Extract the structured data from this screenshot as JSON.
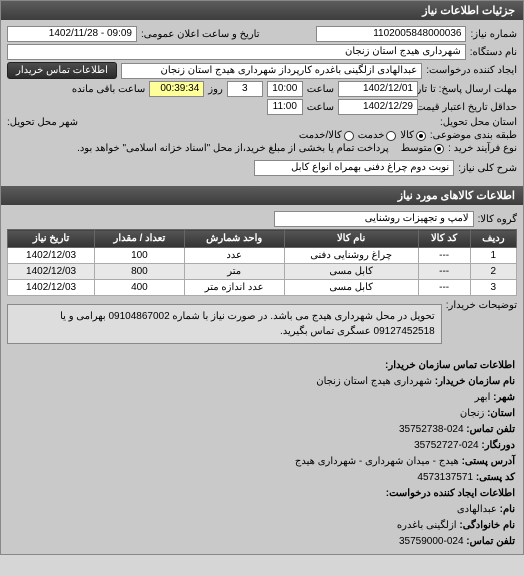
{
  "titlebar": "جزئیات اطلاعات نیاز",
  "need": {
    "number_label": "شماره نیاز:",
    "number": "1102005848000036",
    "announce_label": "تاریخ و ساعت اعلان عمومی:",
    "announce": "09:09 - 1402/11/28",
    "org_label": "نام دستگاه:",
    "org": "شهرداری هیدج استان زنجان",
    "requester_label": "ایجاد کننده درخواست:",
    "requester": "عبدالهادی ازلگینی باغدره کارپرداز شهرداری هیدج استان زنجان",
    "contact_btn": "اطلاعات تماس خریدار",
    "deadline_label": "مهلت ارسال پاسخ: تا تاریخ:",
    "deadline_date": "1402/12/01",
    "deadline_time_lbl": "ساعت",
    "deadline_time": "10:00",
    "day_lbl": "روز",
    "days_left": "3",
    "remain_lbl": "ساعت باقی مانده",
    "remain_time": "00:39:34",
    "validity_label": "حداقل تاریخ اعتبار قیمت: تا تاریخ:",
    "validity_date": "1402/12/29",
    "validity_time": "11:00",
    "province_label": "استان محل تحویل:",
    "city_label": "شهر محل تحویل:",
    "budget_label": "طبقه بندی موضوعی:",
    "r_goods": "کالا",
    "r_service": "خدمت",
    "r_both": "کالا/خدمت",
    "process_label": "نوع فرآیند خرید :",
    "r_mid": "متوسط",
    "process_note": "پرداخت تمام یا بخشی از مبلغ خرید،از محل \"اسناد خزانه اسلامی\" خواهد بود.",
    "subject_label": "شرح کلی نیاز:",
    "subject": "نوبت دوم چراغ دفنی بهمراه انواع کابل"
  },
  "items_header": "اطلاعات کالاهای مورد نیاز",
  "group_label": "گروه کالا:",
  "group": "لامپ و تجهیزات روشنایی",
  "table": {
    "cols": [
      "ردیف",
      "کد کالا",
      "نام کالا",
      "واحد شمارش",
      "تعداد / مقدار",
      "تاریخ نیاز"
    ],
    "rows": [
      [
        "1",
        "---",
        "چراغ روشنایی دفنی",
        "عدد",
        "100",
        "1402/12/03"
      ],
      [
        "2",
        "---",
        "کابل مسی",
        "متر",
        "800",
        "1402/12/03"
      ],
      [
        "3",
        "---",
        "کابل مسی",
        "عدد اندازه متر",
        "400",
        "1402/12/03"
      ]
    ]
  },
  "buyer_desc_label": "توضیحات خریدار:",
  "buyer_desc": "تحویل در محل شهرداری هیدج می باشد. در صورت نیاز با شماره 09104867002 بهرامی و یا 09127452518 عسگری تماس بگیرید.",
  "contact": {
    "header": "اطلاعات تماس سازمان خریدار:",
    "org_lbl": "نام سازمان خریدار:",
    "org": "شهرداری هیدج استان زنجان",
    "city_lbl": "شهر:",
    "city": "ابهر",
    "prov_lbl": "استان:",
    "prov": "زنجان",
    "tel_lbl": "تلفن تماس:",
    "tel": "024-35752738",
    "fax_lbl": "دورنگار:",
    "fax": "024-35752727",
    "addr_lbl": "آدرس پستی:",
    "addr": "هیدج - میدان شهرداری - شهرداری هیدج",
    "post_lbl": "کد پستی:",
    "post": "4573137571",
    "req_header": "اطلاعات ایجاد کننده درخواست:",
    "name_lbl": "نام:",
    "name": "عبدالهادی",
    "last_lbl": "نام خانوادگی:",
    "last": "ازلگینی باغدره",
    "tel2_lbl": "تلفن تماس:",
    "tel2": "024-35759000"
  }
}
